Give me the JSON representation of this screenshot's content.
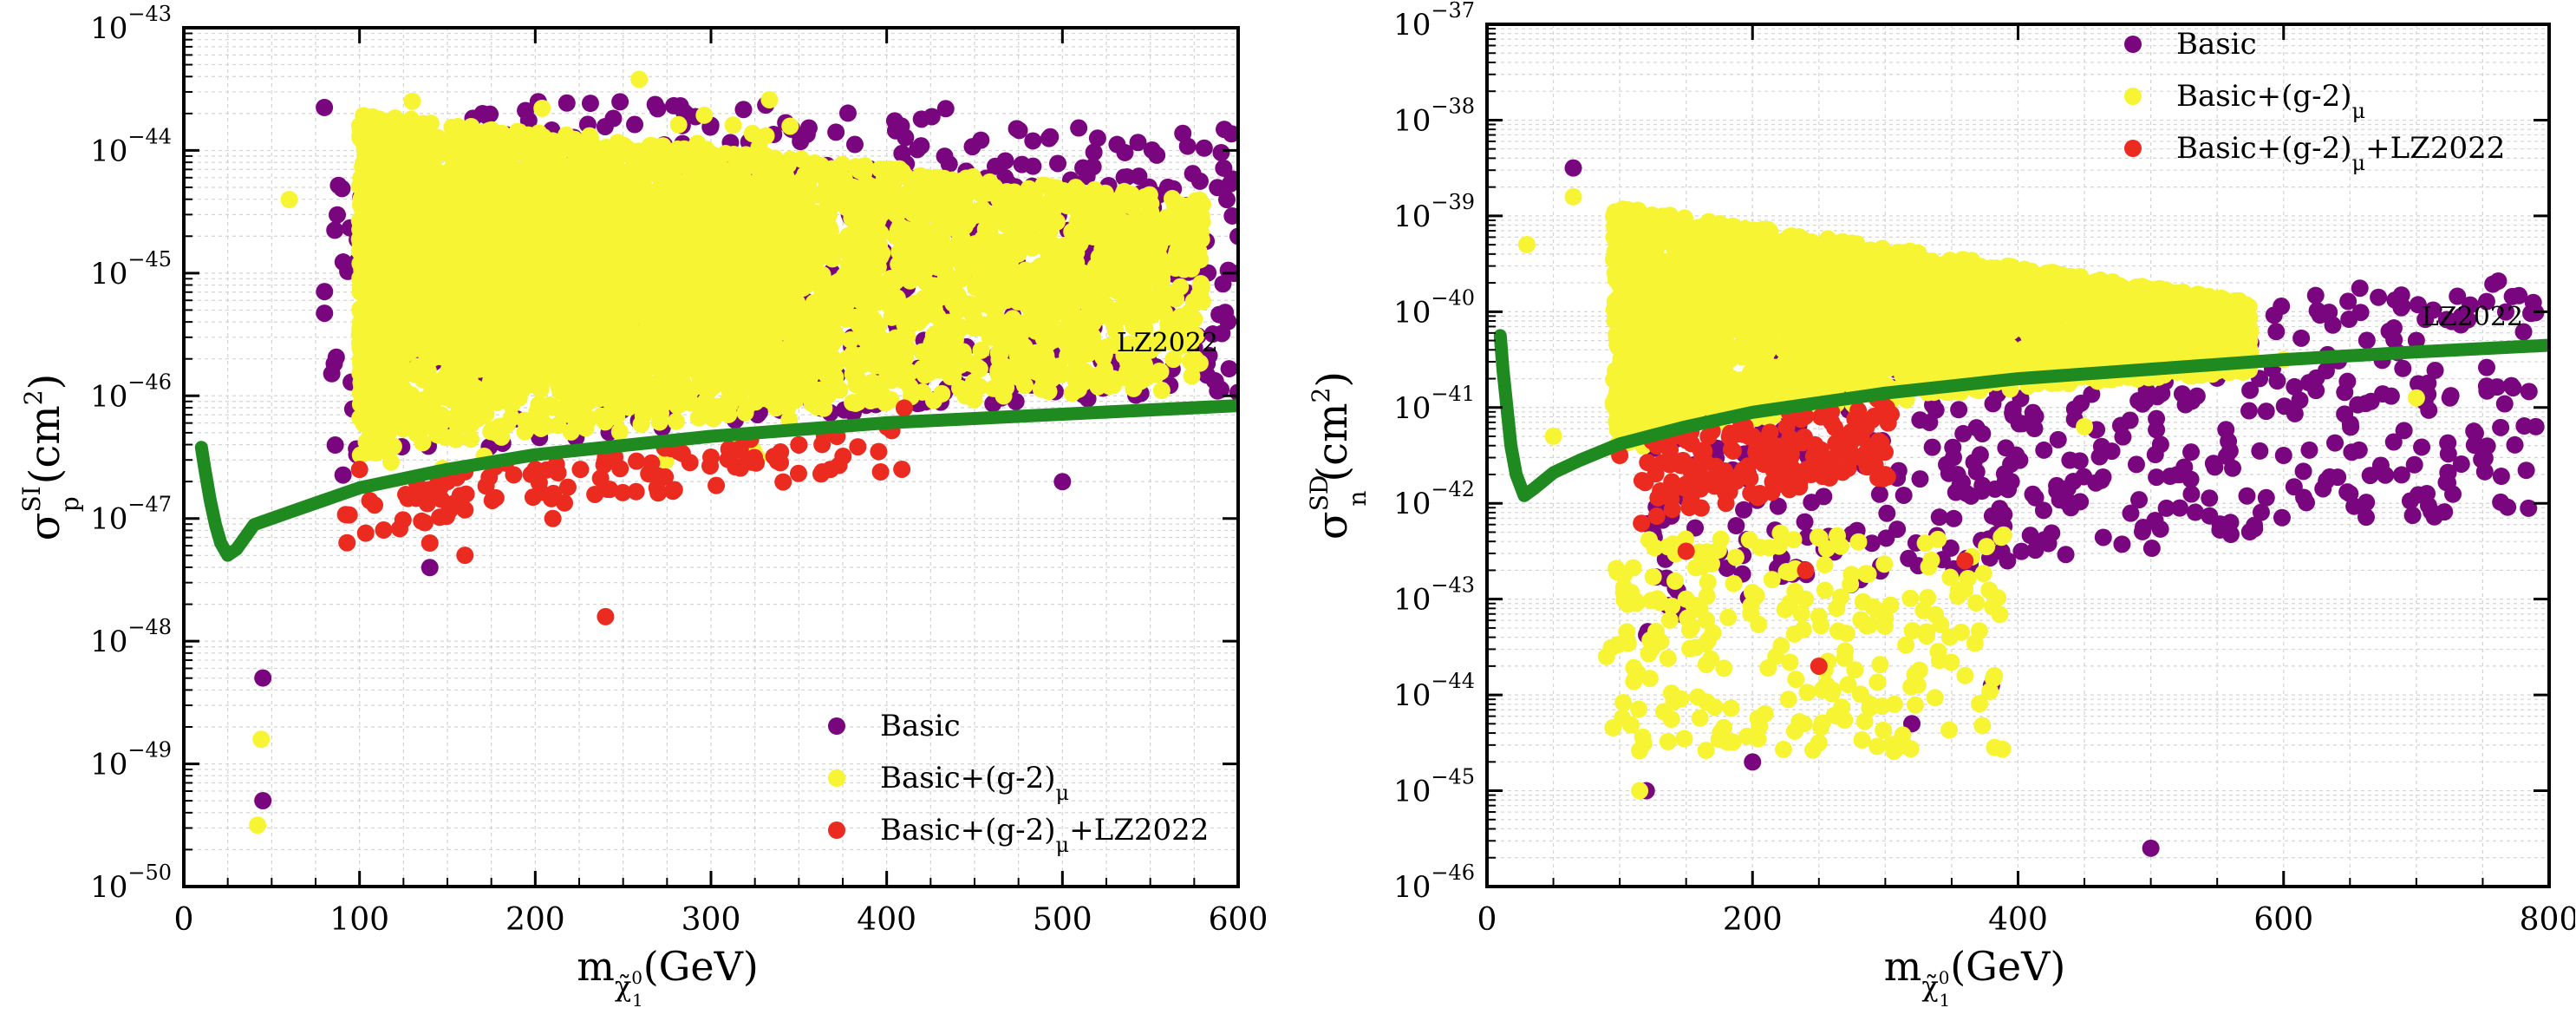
{
  "labels": {
    "ylabel_left": {
      "base": "σ",
      "sup": "SI",
      "sub": "p",
      "unit_pre": "(cm",
      "unit_sup": "2",
      "unit_post": ")"
    },
    "ylabel_right": {
      "base": "σ",
      "sup": "SD",
      "sub": "n",
      "unit_pre": "(cm",
      "unit_sup": "2",
      "unit_post": ")"
    },
    "xlabel": {
      "base": "m",
      "sub": "χ̃",
      "subsub": "1",
      "subsup": "0",
      "unit": "(GeV)"
    }
  },
  "colors": {
    "basic": "#7a067f",
    "g2": "#f7f434",
    "lz": "#ec2b20",
    "limit": "#1f8a1f",
    "grid": "#d4d4d4"
  },
  "chart_data": [
    {
      "type": "scatter",
      "xlim": [
        0,
        600
      ],
      "ylim_exp": [
        -50,
        -43
      ],
      "yscale": "log",
      "xticks": [
        0,
        100,
        200,
        300,
        400,
        500,
        600
      ],
      "ytick_exps": [
        -50,
        -49,
        -48,
        -47,
        -46,
        -45,
        -44,
        -43
      ],
      "grid": true,
      "legend_position": "bottom-right",
      "series": [
        {
          "name": "Basic",
          "color_key": "basic",
          "sample_points": [
            [
              80,
              -43.65
            ],
            [
              170,
              -43.7
            ],
            [
              520,
              -43.9
            ],
            [
              600,
              -44.7
            ],
            [
              570,
              -45.5
            ],
            [
              515,
              -45.3
            ],
            [
              500,
              -46.7
            ],
            [
              350,
              -46.4
            ],
            [
              140,
              -47.4
            ],
            [
              45,
              -48.3
            ],
            [
              45,
              -49.3
            ],
            [
              440,
              -45.9
            ],
            [
              560,
              -44.3
            ],
            [
              480,
              -45.0
            ],
            [
              380,
              -45.6
            ]
          ]
        },
        {
          "name": "Basic+(g-2)",
          "name_sub": "μ",
          "color_key": "g2",
          "sample_points": [
            [
              130,
              -43.6
            ],
            [
              60,
              -44.4
            ],
            [
              42,
              -49.5
            ],
            [
              44,
              -48.8
            ],
            [
              150,
              -44.0
            ],
            [
              300,
              -44.2
            ],
            [
              450,
              -44.5
            ],
            [
              550,
              -44.6
            ],
            [
              100,
              -45.5
            ],
            [
              400,
              -45.8
            ],
            [
              250,
              -46.0
            ],
            [
              470,
              -45.2
            ]
          ]
        },
        {
          "name": "Basic+(g-2)",
          "name_sub": "μ",
          "name_suffix": "+LZ2022",
          "color_key": "lz",
          "sample_points": [
            [
              100,
              -46.6
            ],
            [
              150,
              -46.7
            ],
            [
              200,
              -46.6
            ],
            [
              240,
              -46.5
            ],
            [
              300,
              -46.5
            ],
            [
              350,
              -46.4
            ],
            [
              140,
              -47.2
            ],
            [
              160,
              -47.3
            ],
            [
              210,
              -47.0
            ],
            [
              240,
              -47.8
            ],
            [
              368,
              -46.6
            ],
            [
              410,
              -46.1
            ]
          ]
        }
      ],
      "limit_curve": {
        "label": "LZ2022",
        "points": [
          [
            10,
            -46.42
          ],
          [
            12,
            -46.6
          ],
          [
            15,
            -46.85
          ],
          [
            18,
            -47.05
          ],
          [
            21,
            -47.2
          ],
          [
            25,
            -47.3
          ],
          [
            30,
            -47.25
          ],
          [
            40,
            -47.05
          ],
          [
            60,
            -46.95
          ],
          [
            80,
            -46.85
          ],
          [
            100,
            -46.75
          ],
          [
            150,
            -46.6
          ],
          [
            200,
            -46.48
          ],
          [
            300,
            -46.33
          ],
          [
            400,
            -46.22
          ],
          [
            500,
            -46.15
          ],
          [
            600,
            -46.08
          ]
        ]
      }
    },
    {
      "type": "scatter",
      "xlim": [
        0,
        800
      ],
      "ylim_exp": [
        -46,
        -37
      ],
      "yscale": "log",
      "xticks": [
        0,
        200,
        400,
        600,
        800
      ],
      "ytick_exps": [
        -46,
        -45,
        -44,
        -43,
        -42,
        -41,
        -40,
        -39,
        -38,
        -37
      ],
      "grid": true,
      "legend_position": "top-right",
      "series": [
        {
          "name": "Basic",
          "color_key": "basic",
          "sample_points": [
            [
              65,
              -38.5
            ],
            [
              700,
              -40.3
            ],
            [
              790,
              -41.2
            ],
            [
              500,
              -45.6
            ],
            [
              120,
              -45.0
            ],
            [
              200,
              -44.7
            ],
            [
              380,
              -43.9
            ],
            [
              320,
              -44.3
            ],
            [
              600,
              -41.5
            ],
            [
              650,
              -41.9
            ],
            [
              560,
              -42.2
            ],
            [
              440,
              -42.0
            ],
            [
              520,
              -41.7
            ]
          ]
        },
        {
          "name": "Basic+(g-2)",
          "name_sub": "μ",
          "color_key": "g2",
          "sample_points": [
            [
              65,
              -38.8
            ],
            [
              30,
              -39.3
            ],
            [
              50,
              -41.3
            ],
            [
              90,
              -43.6
            ],
            [
              115,
              -45.0
            ],
            [
              250,
              -44.5
            ],
            [
              300,
              -43.2
            ],
            [
              150,
              -43.0
            ],
            [
              600,
              -40.5
            ],
            [
              700,
              -40.9
            ],
            [
              450,
              -41.2
            ],
            [
              350,
              -40.0
            ]
          ]
        },
        {
          "name": "Basic+(g-2)",
          "name_sub": "μ",
          "name_suffix": "+LZ2022",
          "color_key": "lz",
          "sample_points": [
            [
              100,
              -41.5
            ],
            [
              200,
              -41.3
            ],
            [
              250,
              -41.5
            ],
            [
              300,
              -41.7
            ],
            [
              150,
              -41.8
            ],
            [
              180,
              -42.0
            ],
            [
              220,
              -41.8
            ],
            [
              150,
              -42.5
            ],
            [
              240,
              -42.7
            ],
            [
              360,
              -42.6
            ],
            [
              250,
              -43.7
            ]
          ]
        }
      ],
      "limit_curve": {
        "label": "LZ2022",
        "points": [
          [
            10,
            -40.25
          ],
          [
            12,
            -40.6
          ],
          [
            15,
            -41.0
          ],
          [
            18,
            -41.4
          ],
          [
            22,
            -41.7
          ],
          [
            28,
            -41.92
          ],
          [
            35,
            -41.85
          ],
          [
            50,
            -41.68
          ],
          [
            70,
            -41.55
          ],
          [
            100,
            -41.38
          ],
          [
            150,
            -41.2
          ],
          [
            200,
            -41.05
          ],
          [
            300,
            -40.85
          ],
          [
            400,
            -40.7
          ],
          [
            500,
            -40.6
          ],
          [
            600,
            -40.5
          ],
          [
            700,
            -40.42
          ],
          [
            800,
            -40.35
          ]
        ]
      }
    }
  ]
}
